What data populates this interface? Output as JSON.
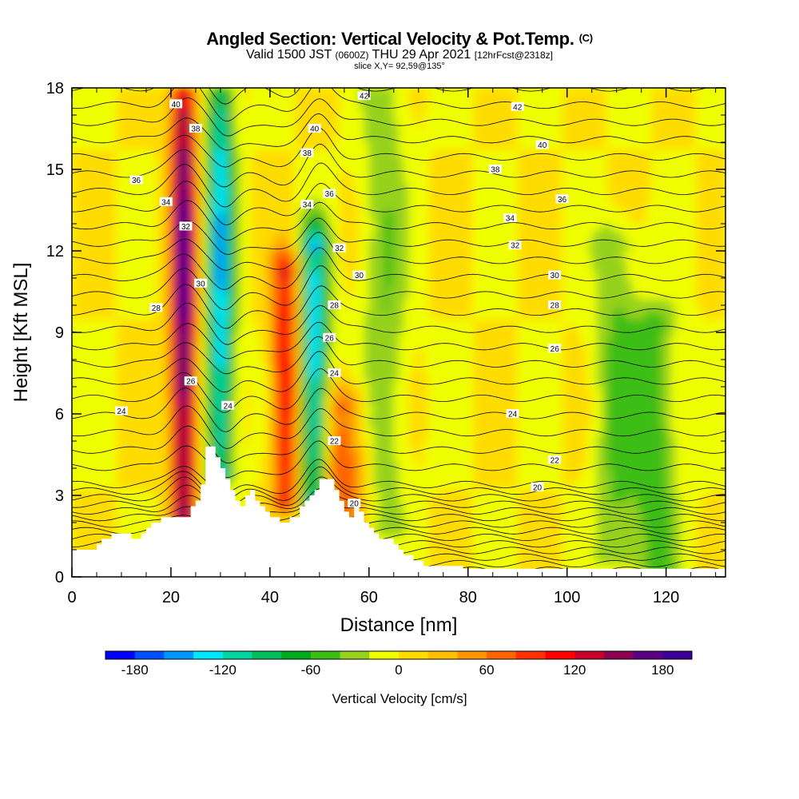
{
  "header": {
    "title_main": "Angled Section: Vertical Velocity & Pot.Temp.",
    "title_unit": "(C)",
    "valid_a": "Valid 1500 JST",
    "valid_b": "(0600Z)",
    "valid_c": "THU 29 Apr 2021",
    "valid_d": "[12hrFcst@2318z]",
    "slice": "slice X,Y= 92,59@135°"
  },
  "chart_data": {
    "type": "heatmap",
    "title": "Angled Section: Vertical Velocity & Pot.Temp.",
    "xlabel": "Distance [nm]",
    "ylabel": "Height [Kft MSL]",
    "xlim": [
      0,
      132
    ],
    "ylim": [
      0,
      18
    ],
    "x_ticks": [
      0,
      20,
      40,
      60,
      80,
      100,
      120
    ],
    "y_ticks": [
      0,
      3,
      6,
      9,
      12,
      15,
      18
    ],
    "colorbar": {
      "label": "Vertical Velocity [cm/s]",
      "range": [
        -200,
        200
      ],
      "tick_values": [
        -180,
        -120,
        -60,
        0,
        60,
        120,
        180
      ],
      "tick_labels": [
        "-180",
        "-120",
        "-60",
        "0",
        "60",
        "120",
        "180"
      ],
      "colors": [
        "#0000ff",
        "#0050ff",
        "#0096ff",
        "#00e6ff",
        "#00d2a0",
        "#00be5a",
        "#00aa1e",
        "#3cbe14",
        "#96d21e",
        "#f0ff00",
        "#ffdc00",
        "#ffbe00",
        "#ff9600",
        "#ff6400",
        "#ff3200",
        "#ff0000",
        "#c80028",
        "#8c0050",
        "#5a0082",
        "#3c0096"
      ]
    },
    "velocity_features": [
      {
        "x_center": 22.5,
        "y_range": [
          2.5,
          18
        ],
        "peak": 185,
        "sign": "updraft"
      },
      {
        "x_center": 30,
        "y_range": [
          4,
          18
        ],
        "peak": -140,
        "sign": "downdraft"
      },
      {
        "x_center": 43,
        "y_range": [
          3,
          11
        ],
        "peak": 125,
        "sign": "updraft"
      },
      {
        "x_center": 49,
        "y_range": [
          3,
          12
        ],
        "peak": -140,
        "sign": "downdraft"
      },
      {
        "x_center": 55,
        "y_range": [
          2,
          6
        ],
        "peak": 80,
        "sign": "updraft"
      },
      {
        "x_center": 63,
        "y_range": [
          2,
          18
        ],
        "peak": -40,
        "sign": "downdraft"
      },
      {
        "x_center": 110,
        "y_range": [
          1,
          12
        ],
        "peak": -45,
        "sign": "downdraft"
      },
      {
        "x_center": 118,
        "y_range": [
          0.5,
          9
        ],
        "peak": -55,
        "sign": "downdraft"
      }
    ],
    "theta_contours": {
      "unit": "C",
      "interval": 1,
      "range": [
        6,
        43
      ],
      "labels": [
        {
          "value": 40,
          "x": 21,
          "y": 17.4
        },
        {
          "value": 38,
          "x": 25,
          "y": 16.5
        },
        {
          "value": 36,
          "x": 13,
          "y": 14.6
        },
        {
          "value": 34,
          "x": 19,
          "y": 13.8
        },
        {
          "value": 32,
          "x": 23,
          "y": 12.9
        },
        {
          "value": 30,
          "x": 26,
          "y": 10.8
        },
        {
          "value": 28,
          "x": 17,
          "y": 9.9
        },
        {
          "value": 26,
          "x": 24,
          "y": 7.2
        },
        {
          "value": 24,
          "x": 10,
          "y": 6.1
        },
        {
          "value": 24,
          "x": 31.5,
          "y": 6.3
        },
        {
          "value": 42,
          "x": 59,
          "y": 17.7
        },
        {
          "value": 40,
          "x": 49,
          "y": 16.5
        },
        {
          "value": 38,
          "x": 47.5,
          "y": 15.6
        },
        {
          "value": 36,
          "x": 52,
          "y": 14.1
        },
        {
          "value": 34,
          "x": 47.5,
          "y": 13.7
        },
        {
          "value": 32,
          "x": 54,
          "y": 12.1
        },
        {
          "value": 30,
          "x": 58,
          "y": 11.1
        },
        {
          "value": 28,
          "x": 53,
          "y": 10.0
        },
        {
          "value": 26,
          "x": 52,
          "y": 8.8
        },
        {
          "value": 24,
          "x": 53,
          "y": 7.5
        },
        {
          "value": 22,
          "x": 53,
          "y": 5.0
        },
        {
          "value": 20,
          "x": 57,
          "y": 2.7
        },
        {
          "value": 42,
          "x": 90,
          "y": 17.3
        },
        {
          "value": 40,
          "x": 95,
          "y": 15.9
        },
        {
          "value": 38,
          "x": 85.5,
          "y": 15.0
        },
        {
          "value": 36,
          "x": 99,
          "y": 13.9
        },
        {
          "value": 34,
          "x": 88.5,
          "y": 13.2
        },
        {
          "value": 32,
          "x": 89.5,
          "y": 12.2
        },
        {
          "value": 30,
          "x": 97.5,
          "y": 11.1
        },
        {
          "value": 28,
          "x": 97.5,
          "y": 10.0
        },
        {
          "value": 26,
          "x": 97.5,
          "y": 8.4
        },
        {
          "value": 24,
          "x": 89,
          "y": 6.0
        },
        {
          "value": 22,
          "x": 97.5,
          "y": 4.3
        },
        {
          "value": 20,
          "x": 94,
          "y": 3.3
        }
      ]
    },
    "terrain": [
      [
        0,
        1
      ],
      [
        5,
        1
      ],
      [
        5,
        1.2
      ],
      [
        6,
        1.2
      ],
      [
        6,
        1.4
      ],
      [
        8,
        1.4
      ],
      [
        8,
        1.6
      ],
      [
        12,
        1.6
      ],
      [
        12,
        1.4
      ],
      [
        14,
        1.4
      ],
      [
        14,
        1.6
      ],
      [
        15,
        1.6
      ],
      [
        15,
        1.8
      ],
      [
        16,
        1.8
      ],
      [
        16,
        2
      ],
      [
        18,
        2
      ],
      [
        18,
        2.2
      ],
      [
        24,
        2.2
      ],
      [
        24,
        2.6
      ],
      [
        25,
        2.6
      ],
      [
        25,
        2.8
      ],
      [
        26,
        2.8
      ],
      [
        26,
        3.4
      ],
      [
        27,
        3.4
      ],
      [
        27,
        4.8
      ],
      [
        29,
        4.8
      ],
      [
        29,
        4.4
      ],
      [
        30,
        4.4
      ],
      [
        30,
        4.0
      ],
      [
        31,
        4.0
      ],
      [
        31,
        3.6
      ],
      [
        32,
        3.6
      ],
      [
        32,
        3.2
      ],
      [
        33,
        3.2
      ],
      [
        33,
        2.8
      ],
      [
        34,
        2.8
      ],
      [
        34,
        2.6
      ],
      [
        35,
        2.6
      ],
      [
        35,
        3.0
      ],
      [
        36,
        3.0
      ],
      [
        36,
        3.2
      ],
      [
        37,
        3.2
      ],
      [
        37,
        2.8
      ],
      [
        38,
        2.8
      ],
      [
        38,
        2.6
      ],
      [
        39,
        2.6
      ],
      [
        39,
        2.4
      ],
      [
        40,
        2.4
      ],
      [
        40,
        2.2
      ],
      [
        42,
        2.2
      ],
      [
        42,
        2.0
      ],
      [
        44,
        2.0
      ],
      [
        44,
        2.2
      ],
      [
        46,
        2.2
      ],
      [
        46,
        2.6
      ],
      [
        47,
        2.6
      ],
      [
        47,
        2.8
      ],
      [
        48,
        2.8
      ],
      [
        48,
        3.0
      ],
      [
        49,
        3.0
      ],
      [
        49,
        3.2
      ],
      [
        50,
        3.2
      ],
      [
        50,
        3.6
      ],
      [
        53,
        3.6
      ],
      [
        53,
        3.2
      ],
      [
        54,
        3.2
      ],
      [
        54,
        2.8
      ],
      [
        55,
        2.8
      ],
      [
        55,
        2.4
      ],
      [
        56,
        2.4
      ],
      [
        56,
        2.2
      ],
      [
        57,
        2.2
      ],
      [
        57,
        2.6
      ],
      [
        58,
        2.6
      ],
      [
        58,
        2.4
      ],
      [
        59,
        2.4
      ],
      [
        59,
        2.0
      ],
      [
        60,
        2.0
      ],
      [
        60,
        1.8
      ],
      [
        61,
        1.8
      ],
      [
        61,
        1.6
      ],
      [
        62,
        1.6
      ],
      [
        62,
        1.4
      ],
      [
        65,
        1.4
      ],
      [
        65,
        1.2
      ],
      [
        66,
        1.2
      ],
      [
        66,
        1.0
      ],
      [
        67,
        1.0
      ],
      [
        67,
        0.8
      ],
      [
        69,
        0.8
      ],
      [
        69,
        0.6
      ],
      [
        71,
        0.6
      ],
      [
        71,
        0.4
      ],
      [
        79,
        0.4
      ],
      [
        79,
        0.3
      ],
      [
        132,
        0.3
      ]
    ]
  }
}
